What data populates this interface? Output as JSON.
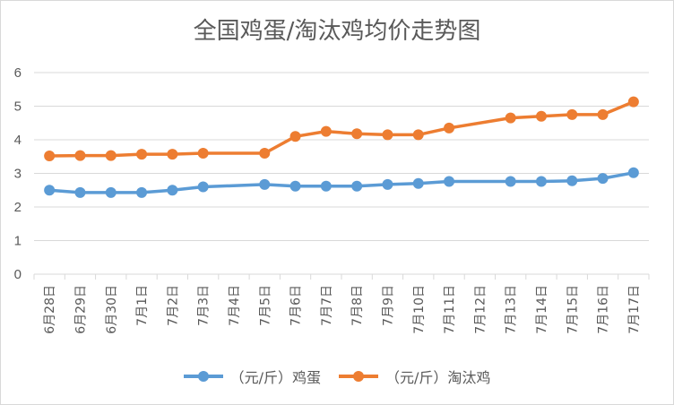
{
  "chart_data": {
    "type": "line",
    "title": "全国鸡蛋/淘汰鸡均价走势图",
    "categories": [
      "6月28日",
      "6月29日",
      "6月30日",
      "7月1日",
      "7月2日",
      "7月3日",
      "7月4日",
      "7月5日",
      "7月6日",
      "7月7日",
      "7月8日",
      "7月9日",
      "7月10日",
      "7月11日",
      "7月12日",
      "7月13日",
      "7月14日",
      "7月15日",
      "7月16日",
      "7月17日"
    ],
    "ylim": [
      0,
      6
    ],
    "yticks": [
      "0",
      "1",
      "2",
      "3",
      "4",
      "5",
      "6"
    ],
    "grid": true,
    "legend_position": "bottom",
    "series": [
      {
        "name": "（元/斤）鸡蛋",
        "color": "#5B9BD5",
        "values": [
          2.5,
          2.43,
          2.43,
          2.43,
          2.5,
          2.6,
          null,
          2.67,
          2.62,
          2.62,
          2.62,
          2.67,
          2.7,
          2.76,
          null,
          2.76,
          2.76,
          2.78,
          2.85,
          3.02
        ]
      },
      {
        "name": "（元/斤）淘汰鸡",
        "color": "#ED7D31",
        "values": [
          3.52,
          3.53,
          3.53,
          3.57,
          3.57,
          3.6,
          null,
          3.6,
          4.1,
          4.25,
          4.18,
          4.15,
          4.15,
          4.35,
          null,
          4.65,
          4.7,
          4.75,
          4.75,
          5.13
        ]
      }
    ]
  }
}
